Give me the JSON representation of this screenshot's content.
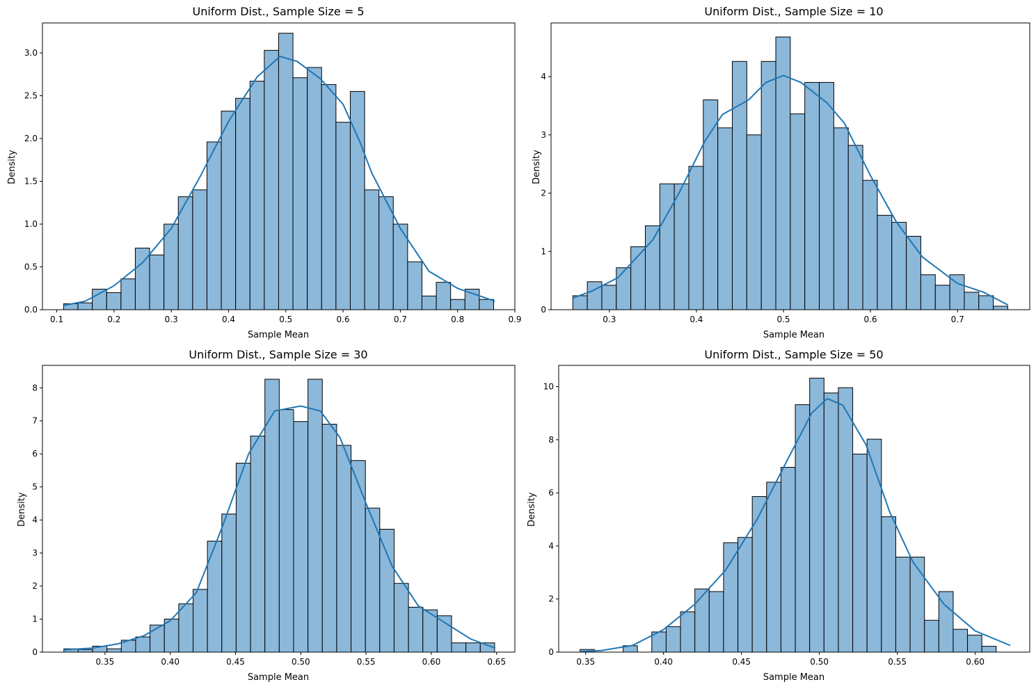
{
  "chart_data": [
    {
      "type": "bar",
      "title": "Uniform Dist., Sample Size = 5",
      "xlabel": "Sample Mean",
      "ylabel": "Density",
      "xlim": [
        0.075,
        0.9
      ],
      "ylim": [
        0,
        3.35
      ],
      "xticks": [
        0.1,
        0.2,
        0.3,
        0.4,
        0.5,
        0.6,
        0.7,
        0.8,
        0.9
      ],
      "xtick_labels": [
        "0.1",
        "0.2",
        "0.3",
        "0.4",
        "0.5",
        "0.6",
        "0.7",
        "0.8",
        "0.9"
      ],
      "yticks": [
        0,
        0.5,
        1.0,
        1.5,
        2.0,
        2.5,
        3.0
      ],
      "ytick_labels": [
        "0.0",
        "0.5",
        "1.0",
        "1.5",
        "2.0",
        "2.5",
        "3.0"
      ],
      "bin_start": 0.112,
      "bin_width": 0.02503,
      "values": [
        0.07,
        0.08,
        0.24,
        0.2,
        0.36,
        0.72,
        0.64,
        1.0,
        1.32,
        1.4,
        1.96,
        2.32,
        2.47,
        2.67,
        3.03,
        3.23,
        2.71,
        2.83,
        2.63,
        2.19,
        2.55,
        1.4,
        1.32,
        1.0,
        0.56,
        0.16,
        0.32,
        0.12,
        0.24,
        0.12
      ],
      "kde": [
        [
          0.112,
          0.05
        ],
        [
          0.15,
          0.1
        ],
        [
          0.2,
          0.28
        ],
        [
          0.25,
          0.55
        ],
        [
          0.3,
          0.95
        ],
        [
          0.35,
          1.55
        ],
        [
          0.4,
          2.2
        ],
        [
          0.45,
          2.72
        ],
        [
          0.49,
          2.96
        ],
        [
          0.52,
          2.9
        ],
        [
          0.56,
          2.7
        ],
        [
          0.6,
          2.4
        ],
        [
          0.63,
          1.95
        ],
        [
          0.65,
          1.6
        ],
        [
          0.7,
          0.95
        ],
        [
          0.75,
          0.45
        ],
        [
          0.8,
          0.25
        ],
        [
          0.865,
          0.1
        ]
      ]
    },
    {
      "type": "bar",
      "title": "Uniform Dist., Sample Size = 10",
      "xlabel": "Sample Mean",
      "ylabel": "Density",
      "xlim": [
        0.233,
        0.783
      ],
      "ylim": [
        0,
        4.92
      ],
      "xticks": [
        0.3,
        0.4,
        0.5,
        0.6,
        0.7
      ],
      "xtick_labels": [
        "0.3",
        "0.4",
        "0.5",
        "0.6",
        "0.7"
      ],
      "yticks": [
        0,
        1,
        2,
        3,
        4
      ],
      "ytick_labels": [
        "0",
        "1",
        "2",
        "3",
        "4"
      ],
      "bin_start": 0.258,
      "bin_width": 0.01666,
      "values": [
        0.24,
        0.48,
        0.42,
        0.72,
        1.08,
        1.44,
        2.16,
        2.16,
        2.46,
        3.6,
        3.12,
        4.26,
        3.0,
        4.26,
        4.68,
        3.36,
        3.9,
        3.9,
        3.12,
        2.82,
        2.22,
        1.62,
        1.5,
        1.26,
        0.6,
        0.42,
        0.6,
        0.3,
        0.24,
        0.06
      ],
      "kde": [
        [
          0.258,
          0.2
        ],
        [
          0.28,
          0.32
        ],
        [
          0.31,
          0.55
        ],
        [
          0.35,
          1.2
        ],
        [
          0.38,
          2.0
        ],
        [
          0.41,
          2.9
        ],
        [
          0.43,
          3.35
        ],
        [
          0.46,
          3.6
        ],
        [
          0.48,
          3.9
        ],
        [
          0.5,
          4.02
        ],
        [
          0.52,
          3.9
        ],
        [
          0.55,
          3.55
        ],
        [
          0.57,
          3.2
        ],
        [
          0.6,
          2.3
        ],
        [
          0.63,
          1.5
        ],
        [
          0.66,
          0.9
        ],
        [
          0.7,
          0.45
        ],
        [
          0.73,
          0.3
        ],
        [
          0.758,
          0.08
        ]
      ]
    },
    {
      "type": "bar",
      "title": "Uniform Dist., Sample Size = 30",
      "xlabel": "Sample Mean",
      "ylabel": "Density",
      "xlim": [
        0.3021,
        0.664
      ],
      "ylim": [
        0,
        8.68
      ],
      "xticks": [
        0.35,
        0.4,
        0.45,
        0.5,
        0.55,
        0.6,
        0.65
      ],
      "xtick_labels": [
        "0.35",
        "0.40",
        "0.45",
        "0.50",
        "0.55",
        "0.60",
        "0.65"
      ],
      "yticks": [
        0,
        1,
        2,
        3,
        4,
        5,
        6,
        7,
        8
      ],
      "ytick_labels": [
        "0",
        "1",
        "2",
        "3",
        "4",
        "5",
        "6",
        "7",
        "8"
      ],
      "bin_start": 0.3185,
      "bin_width": 0.011,
      "values": [
        0.1,
        0.08,
        0.18,
        0.1,
        0.36,
        0.46,
        0.82,
        1.0,
        1.46,
        1.9,
        3.36,
        4.18,
        5.72,
        6.54,
        8.26,
        7.34,
        6.98,
        8.26,
        6.9,
        6.26,
        5.8,
        4.36,
        3.72,
        2.08,
        1.36,
        1.28,
        1.1,
        0.28,
        0.28,
        0.28
      ],
      "kde": [
        [
          0.3185,
          0.07
        ],
        [
          0.34,
          0.12
        ],
        [
          0.36,
          0.25
        ],
        [
          0.38,
          0.5
        ],
        [
          0.4,
          0.95
        ],
        [
          0.42,
          1.8
        ],
        [
          0.44,
          3.8
        ],
        [
          0.46,
          6.0
        ],
        [
          0.48,
          7.3
        ],
        [
          0.5,
          7.45
        ],
        [
          0.515,
          7.3
        ],
        [
          0.53,
          6.5
        ],
        [
          0.55,
          4.5
        ],
        [
          0.57,
          2.6
        ],
        [
          0.59,
          1.4
        ],
        [
          0.61,
          0.9
        ],
        [
          0.63,
          0.4
        ],
        [
          0.649,
          0.12
        ]
      ]
    },
    {
      "type": "bar",
      "title": "Uniform Dist., Sample Size = 50",
      "xlabel": "Sample Mean",
      "ylabel": "Density",
      "xlim": [
        0.3327,
        0.635
      ],
      "ylim": [
        0,
        10.8
      ],
      "xticks": [
        0.35,
        0.4,
        0.45,
        0.5,
        0.55,
        0.6
      ],
      "xtick_labels": [
        "0.35",
        "0.40",
        "0.45",
        "0.50",
        "0.55",
        "0.60"
      ],
      "yticks": [
        0,
        2,
        4,
        6,
        8,
        10
      ],
      "ytick_labels": [
        "0",
        "2",
        "4",
        "6",
        "8",
        "10"
      ],
      "bin_start": 0.3464,
      "bin_width": 0.00921,
      "values": [
        0.1,
        0.0,
        0.0,
        0.24,
        0.0,
        0.76,
        0.96,
        1.52,
        2.38,
        2.28,
        4.12,
        4.32,
        5.86,
        6.4,
        6.96,
        9.32,
        10.32,
        9.76,
        9.96,
        7.46,
        8.02,
        5.1,
        3.58,
        3.58,
        1.2,
        2.28,
        0.86,
        0.64,
        0.22,
        0.0
      ],
      "kde": [
        [
          0.3464,
          0.02
        ],
        [
          0.36,
          0.06
        ],
        [
          0.38,
          0.25
        ],
        [
          0.4,
          0.85
        ],
        [
          0.42,
          1.8
        ],
        [
          0.44,
          3.1
        ],
        [
          0.46,
          5.0
        ],
        [
          0.48,
          7.3
        ],
        [
          0.495,
          9.0
        ],
        [
          0.505,
          9.55
        ],
        [
          0.515,
          9.3
        ],
        [
          0.53,
          7.8
        ],
        [
          0.545,
          5.3
        ],
        [
          0.56,
          3.4
        ],
        [
          0.58,
          1.8
        ],
        [
          0.6,
          0.8
        ],
        [
          0.6226,
          0.25
        ]
      ]
    }
  ]
}
